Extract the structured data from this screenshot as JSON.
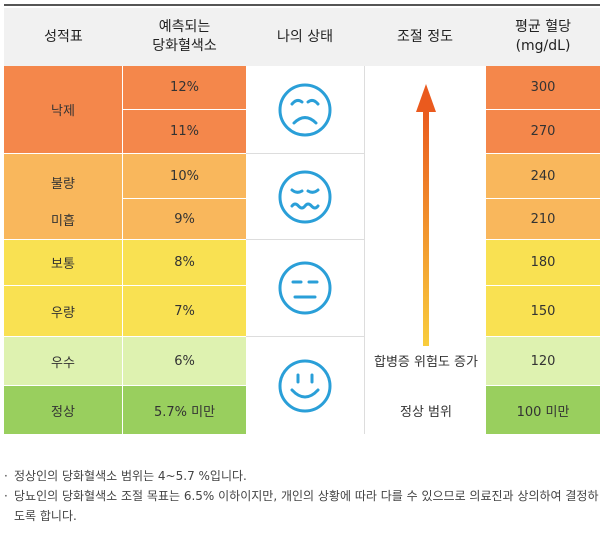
{
  "headers": {
    "grade": "성적표",
    "hba1c": "예측되는\n당화혈색소",
    "state": "나의 상태",
    "control": "조절 정도",
    "glucose": "평균 혈당\n(mg/dL)"
  },
  "rows": [
    {
      "grade": "낙제",
      "hba1c": "12%",
      "glucose": "300"
    },
    {
      "grade": "낙제",
      "hba1c": "11%",
      "glucose": "270"
    },
    {
      "grade": "불량",
      "hba1c": "10%",
      "glucose": "240"
    },
    {
      "grade": "미흡",
      "hba1c": "9%",
      "glucose": "210"
    },
    {
      "grade": "보통",
      "hba1c": "8%",
      "glucose": "180"
    },
    {
      "grade": "우량",
      "hba1c": "7%",
      "glucose": "150"
    },
    {
      "grade": "우수",
      "hba1c": "6%",
      "glucose": "120"
    },
    {
      "grade": "정상",
      "hba1c": "5.7% 미만",
      "glucose": "100 미만"
    }
  ],
  "faces": [
    "sad-face-icon",
    "wavy-mouth-face-icon",
    "neutral-face-icon",
    "smiling-face-icon"
  ],
  "control": {
    "risk_label": "합병증 위험도 증가",
    "normal_label": "정상 범위"
  },
  "colors": {
    "failing": "#f4874b",
    "poor": "#f9b75c",
    "average": "#f9e152",
    "excellent": "#def2b0",
    "normal": "#99cf5e",
    "face": "#2a9fd8",
    "arrow_top": "#ea5a1e",
    "arrow_bottom": "#f9cd3d"
  },
  "notes": [
    "정상인의 당화혈색소 범위는 4~5.7 %입니다.",
    "당뇨인의 당화혈색소 조절 목표는 6.5% 이하이지만, 개인의 상황에 따라 다를 수 있으므로 의료진과 상의하여 결정하도록 합니다."
  ]
}
